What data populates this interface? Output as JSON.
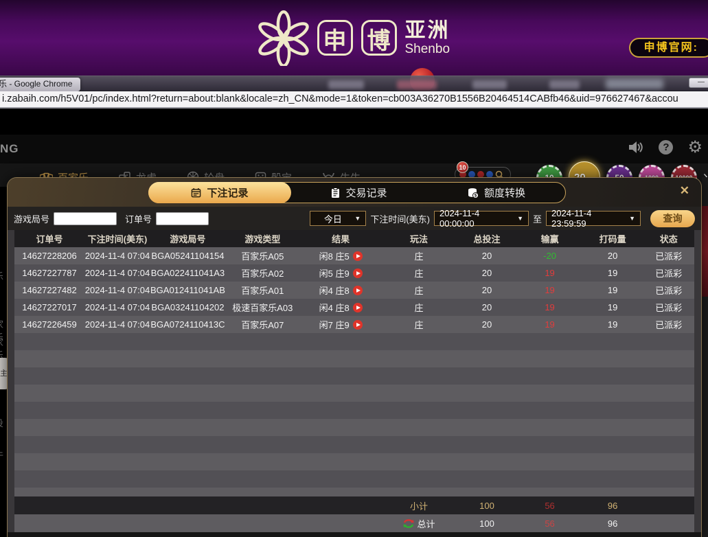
{
  "icons": {
    "dropdown": "▼",
    "close": "✕",
    "minimize": "—",
    "chevron": "›",
    "question": "?",
    "gear": "⚙"
  },
  "colors": {
    "accent_gold": "#e8b254",
    "win_green": "#2fbe2f",
    "loss_red": "#e23c3c",
    "banner_purple": "#570d6c"
  },
  "banner": {
    "logo_char1": "申",
    "logo_char2": "博",
    "logo_region": "亚洲",
    "logo_en": "Shenbo",
    "official_button": "申博官网:"
  },
  "chrome": {
    "window_title": "乐 - Google Chrome",
    "url": "i.zabaih.com/h5V01/pc/index.html?return=about:blank&locale=zh_CN&mode=1&token=cb003A36270B1556B20464514CABfb46&uid=976627467&accou"
  },
  "page_header": {
    "brand_fragment": "NG"
  },
  "category_nav": [
    {
      "label": "百家乐",
      "icon": "cards-icon",
      "active": true
    },
    {
      "label": "龙虎",
      "icon": "dice-pair-icon",
      "active": false
    },
    {
      "label": "轮盘",
      "icon": "roulette-icon",
      "active": false
    },
    {
      "label": "骰宝",
      "icon": "dice-icon",
      "active": false
    },
    {
      "label": "牛牛",
      "icon": "bull-icon",
      "active": false
    }
  ],
  "lottery_widget": {
    "badge": "10"
  },
  "chips": [
    {
      "value": "10",
      "color": "#3f9c42",
      "selected": false
    },
    {
      "value": "20",
      "color": "#b8912c",
      "selected": true
    },
    {
      "value": "50",
      "color": "#6a2f8f",
      "selected": false
    },
    {
      "value": "1000",
      "color": "#c04a9a",
      "selected": false
    },
    {
      "value": "10000",
      "color": "#9c2a35",
      "selected": false
    }
  ],
  "left_edge_fragments": [
    "乐",
    "家乐",
    "家乐",
    "投",
    "牛"
  ],
  "side_tab_fragment": "主",
  "modal": {
    "tabs": [
      {
        "label": "下注记录",
        "icon": "calendar-icon",
        "active": true
      },
      {
        "label": "交易记录",
        "icon": "clipboard-icon",
        "active": false
      },
      {
        "label": "额度转换",
        "icon": "coins-icon",
        "active": false
      }
    ],
    "filters": {
      "game_round_label": "游戏局号",
      "order_label": "订单号",
      "range_select": "今日",
      "bet_time_label": "下注时间(美东)",
      "date_from": "2024-11-4 00:00:00",
      "to_label": "至",
      "date_to": "2024-11-4 23:59:59",
      "search_button": "查询"
    },
    "table": {
      "headers": [
        "订单号",
        "下注时间(美东)",
        "游戏局号",
        "游戏类型",
        "结果",
        "玩法",
        "总投注",
        "输赢",
        "打码量",
        "状态"
      ],
      "rows": [
        {
          "order": "14627228206",
          "time": "2024-11-4 07:04",
          "round": "BGA05241104154",
          "game": "百家乐A05",
          "result": "闲8 庄5",
          "play": "庄",
          "bet": "20",
          "winloss": "-20",
          "wl_color": "green",
          "turnover": "20",
          "status": "已派彩"
        },
        {
          "order": "14627227787",
          "time": "2024-11-4 07:04",
          "round": "BGA022411041A3",
          "game": "百家乐A02",
          "result": "闲5 庄9",
          "play": "庄",
          "bet": "20",
          "winloss": "19",
          "wl_color": "red",
          "turnover": "19",
          "status": "已派彩"
        },
        {
          "order": "14627227482",
          "time": "2024-11-4 07:04",
          "round": "BGA012411041AB",
          "game": "百家乐A01",
          "result": "闲4 庄8",
          "play": "庄",
          "bet": "20",
          "winloss": "19",
          "wl_color": "red",
          "turnover": "19",
          "status": "已派彩"
        },
        {
          "order": "14627227017",
          "time": "2024-11-4 07:04",
          "round": "BGA03241104202",
          "game": "极速百家乐A03",
          "result": "闲4 庄8",
          "play": "庄",
          "bet": "20",
          "winloss": "19",
          "wl_color": "red",
          "turnover": "19",
          "status": "已派彩"
        },
        {
          "order": "14627226459",
          "time": "2024-11-4 07:04",
          "round": "BGA0724110413C",
          "game": "百家乐A07",
          "result": "闲7 庄9",
          "play": "庄",
          "bet": "20",
          "winloss": "19",
          "wl_color": "red",
          "turnover": "19",
          "status": "已派彩"
        }
      ],
      "summary": [
        {
          "label": "小计",
          "bet": "100",
          "winloss": "56",
          "turnover": "96"
        },
        {
          "label": "总计",
          "bet": "100",
          "winloss": "56",
          "turnover": "96"
        }
      ]
    }
  }
}
